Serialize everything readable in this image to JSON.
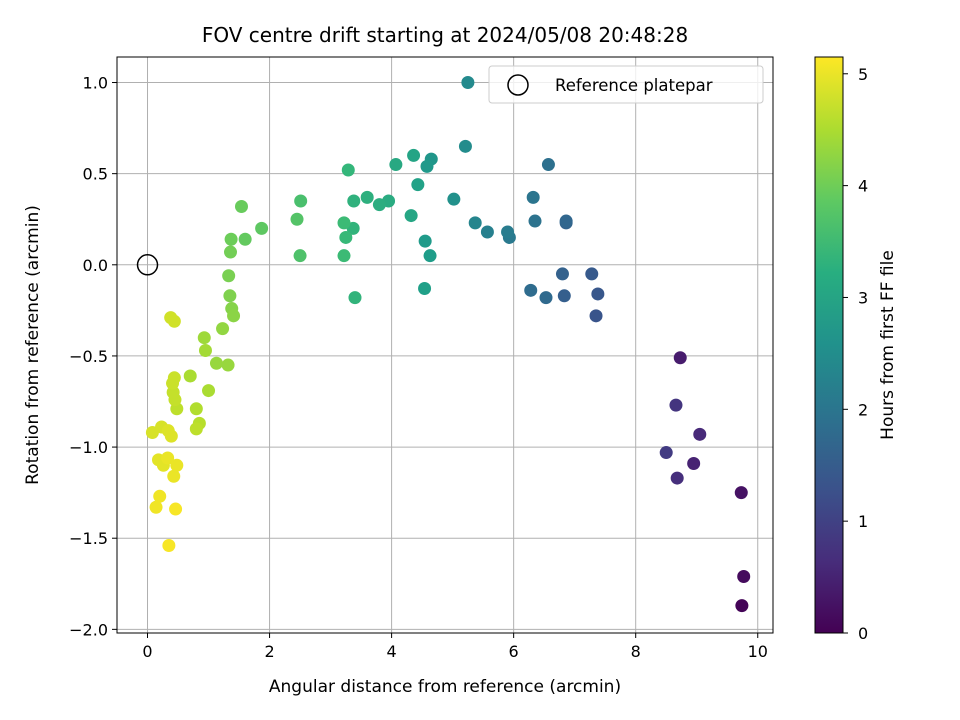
{
  "chart_data": {
    "type": "scatter",
    "title": "FOV centre drift starting at 2024/05/08 20:48:28",
    "xlabel": "Angular distance from reference (arcmin)",
    "ylabel": "Rotation from reference (arcmin)",
    "xlim": [
      -0.5,
      10.25
    ],
    "ylim": [
      -2.02,
      1.14
    ],
    "xticks": [
      0,
      2,
      4,
      6,
      8,
      10
    ],
    "xtick_labels": [
      "0",
      "2",
      "4",
      "6",
      "8",
      "10"
    ],
    "yticks": [
      -2.0,
      -1.5,
      -1.0,
      -0.5,
      0.0,
      0.5,
      1.0
    ],
    "ytick_labels": [
      "−2.0",
      "−1.5",
      "−1.0",
      "−0.5",
      "0.0",
      "0.5",
      "1.0"
    ],
    "grid": true,
    "legend": {
      "position": "top-right",
      "entries": [
        "Reference platepar"
      ]
    },
    "reference_point": {
      "x": 0,
      "y": 0
    },
    "colorbar": {
      "label": "Hours from first FF file",
      "range": [
        0,
        5.15
      ],
      "ticks": [
        0,
        1,
        2,
        3,
        4,
        5
      ],
      "tick_labels": [
        "0",
        "1",
        "2",
        "3",
        "4",
        "5"
      ],
      "colormap": "viridis"
    },
    "points": [
      {
        "x": 9.74,
        "y": -1.87,
        "h": 0.05
      },
      {
        "x": 9.77,
        "y": -1.71,
        "h": 0.15
      },
      {
        "x": 9.73,
        "y": -1.25,
        "h": 0.25
      },
      {
        "x": 8.73,
        "y": -0.51,
        "h": 0.4
      },
      {
        "x": 8.95,
        "y": -1.09,
        "h": 0.5
      },
      {
        "x": 9.05,
        "y": -0.93,
        "h": 0.6
      },
      {
        "x": 8.68,
        "y": -1.17,
        "h": 0.7
      },
      {
        "x": 8.66,
        "y": -0.77,
        "h": 0.8
      },
      {
        "x": 8.5,
        "y": -1.03,
        "h": 0.9
      },
      {
        "x": 7.35,
        "y": -0.28,
        "h": 1.35
      },
      {
        "x": 7.38,
        "y": -0.16,
        "h": 1.4
      },
      {
        "x": 7.28,
        "y": -0.05,
        "h": 1.45
      },
      {
        "x": 6.83,
        "y": -0.17,
        "h": 1.55
      },
      {
        "x": 6.8,
        "y": -0.05,
        "h": 1.6
      },
      {
        "x": 6.86,
        "y": 0.23,
        "h": 1.65
      },
      {
        "x": 6.86,
        "y": 0.24,
        "h": 1.7
      },
      {
        "x": 6.53,
        "y": -0.18,
        "h": 1.75
      },
      {
        "x": 6.28,
        "y": -0.14,
        "h": 1.8
      },
      {
        "x": 6.57,
        "y": 0.55,
        "h": 1.9
      },
      {
        "x": 6.35,
        "y": 0.24,
        "h": 1.95
      },
      {
        "x": 6.32,
        "y": 0.37,
        "h": 2.0
      },
      {
        "x": 5.93,
        "y": 0.15,
        "h": 2.1
      },
      {
        "x": 5.9,
        "y": 0.18,
        "h": 2.15
      },
      {
        "x": 5.57,
        "y": 0.18,
        "h": 2.25
      },
      {
        "x": 5.37,
        "y": 0.23,
        "h": 2.35
      },
      {
        "x": 5.25,
        "y": 1.0,
        "h": 2.45
      },
      {
        "x": 5.21,
        "y": 0.65,
        "h": 2.5
      },
      {
        "x": 5.02,
        "y": 0.36,
        "h": 2.6
      },
      {
        "x": 4.65,
        "y": 0.58,
        "h": 2.7
      },
      {
        "x": 4.58,
        "y": 0.54,
        "h": 2.75
      },
      {
        "x": 4.55,
        "y": 0.13,
        "h": 2.8
      },
      {
        "x": 4.63,
        "y": 0.05,
        "h": 2.85
      },
      {
        "x": 4.54,
        "y": -0.13,
        "h": 2.9
      },
      {
        "x": 4.43,
        "y": 0.44,
        "h": 2.95
      },
      {
        "x": 4.36,
        "y": 0.6,
        "h": 3.0
      },
      {
        "x": 4.32,
        "y": 0.27,
        "h": 3.05
      },
      {
        "x": 4.07,
        "y": 0.55,
        "h": 3.1
      },
      {
        "x": 3.95,
        "y": 0.35,
        "h": 3.15
      },
      {
        "x": 3.8,
        "y": 0.33,
        "h": 3.2
      },
      {
        "x": 3.6,
        "y": 0.37,
        "h": 3.25
      },
      {
        "x": 3.38,
        "y": 0.35,
        "h": 3.3
      },
      {
        "x": 3.37,
        "y": 0.2,
        "h": 3.35
      },
      {
        "x": 3.4,
        "y": -0.18,
        "h": 3.35
      },
      {
        "x": 3.29,
        "y": 0.52,
        "h": 3.4
      },
      {
        "x": 3.25,
        "y": 0.15,
        "h": 3.45
      },
      {
        "x": 3.22,
        "y": 0.05,
        "h": 3.5
      },
      {
        "x": 3.22,
        "y": 0.23,
        "h": 3.5
      },
      {
        "x": 2.51,
        "y": 0.35,
        "h": 3.65
      },
      {
        "x": 2.5,
        "y": 0.05,
        "h": 3.7
      },
      {
        "x": 2.45,
        "y": 0.25,
        "h": 3.75
      },
      {
        "x": 1.87,
        "y": 0.2,
        "h": 3.85
      },
      {
        "x": 1.6,
        "y": 0.14,
        "h": 3.9
      },
      {
        "x": 1.54,
        "y": 0.32,
        "h": 3.95
      },
      {
        "x": 1.37,
        "y": 0.14,
        "h": 4.0
      },
      {
        "x": 1.36,
        "y": 0.07,
        "h": 4.05
      },
      {
        "x": 1.33,
        "y": -0.06,
        "h": 4.1
      },
      {
        "x": 1.35,
        "y": -0.17,
        "h": 4.15
      },
      {
        "x": 1.38,
        "y": -0.24,
        "h": 4.2
      },
      {
        "x": 1.41,
        "y": -0.28,
        "h": 4.25
      },
      {
        "x": 1.23,
        "y": -0.35,
        "h": 4.3
      },
      {
        "x": 1.32,
        "y": -0.55,
        "h": 4.35
      },
      {
        "x": 1.13,
        "y": -0.54,
        "h": 4.35
      },
      {
        "x": 0.93,
        "y": -0.4,
        "h": 4.4
      },
      {
        "x": 0.95,
        "y": -0.47,
        "h": 4.45
      },
      {
        "x": 1.0,
        "y": -0.69,
        "h": 4.5
      },
      {
        "x": 0.7,
        "y": -0.61,
        "h": 4.5
      },
      {
        "x": 0.8,
        "y": -0.79,
        "h": 4.55
      },
      {
        "x": 0.85,
        "y": -0.87,
        "h": 4.6
      },
      {
        "x": 0.8,
        "y": -0.9,
        "h": 4.65
      },
      {
        "x": 0.48,
        "y": -0.79,
        "h": 4.65
      },
      {
        "x": 0.45,
        "y": -0.74,
        "h": 4.7
      },
      {
        "x": 0.42,
        "y": -0.7,
        "h": 4.7
      },
      {
        "x": 0.41,
        "y": -0.65,
        "h": 4.75
      },
      {
        "x": 0.44,
        "y": -0.62,
        "h": 4.75
      },
      {
        "x": 0.38,
        "y": -0.29,
        "h": 4.8
      },
      {
        "x": 0.44,
        "y": -0.31,
        "h": 4.8
      },
      {
        "x": 0.08,
        "y": -0.92,
        "h": 4.85
      },
      {
        "x": 0.23,
        "y": -0.89,
        "h": 4.85
      },
      {
        "x": 0.34,
        "y": -0.91,
        "h": 4.9
      },
      {
        "x": 0.39,
        "y": -0.94,
        "h": 4.9
      },
      {
        "x": 0.18,
        "y": -1.07,
        "h": 4.95
      },
      {
        "x": 0.26,
        "y": -1.1,
        "h": 4.95
      },
      {
        "x": 0.33,
        "y": -1.06,
        "h": 5.0
      },
      {
        "x": 0.43,
        "y": -1.16,
        "h": 5.0
      },
      {
        "x": 0.48,
        "y": -1.1,
        "h": 5.0
      },
      {
        "x": 0.2,
        "y": -1.27,
        "h": 5.05
      },
      {
        "x": 0.14,
        "y": -1.33,
        "h": 5.05
      },
      {
        "x": 0.46,
        "y": -1.34,
        "h": 5.1
      },
      {
        "x": 0.35,
        "y": -1.54,
        "h": 5.1
      }
    ]
  }
}
